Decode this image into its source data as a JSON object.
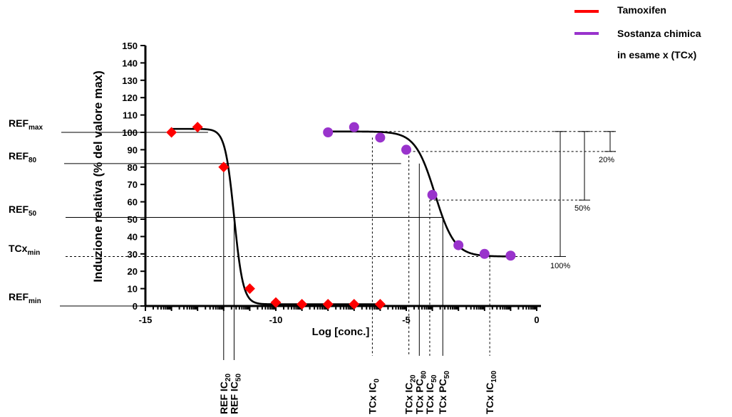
{
  "chart_data": {
    "type": "scatter",
    "title": "",
    "xlabel": "Log [conc.]",
    "ylabel": "Induzione relativa (% del valore max)",
    "xlim": [
      -15,
      0
    ],
    "ylim": [
      0,
      150
    ],
    "x_ticks": [
      -15,
      -10,
      -5,
      0
    ],
    "y_ticks": [
      0,
      10,
      20,
      30,
      40,
      50,
      60,
      70,
      80,
      90,
      100,
      110,
      120,
      130,
      140,
      150
    ],
    "legend_position": "top-right",
    "series": [
      {
        "name": "Tamoxifen",
        "color": "#ff0000",
        "marker": "diamond",
        "points": [
          [
            -14,
            100
          ],
          [
            -13,
            103
          ],
          [
            -12,
            80
          ],
          [
            -11,
            10
          ],
          [
            -10,
            2
          ],
          [
            -9,
            1
          ],
          [
            -8,
            1
          ],
          [
            -7,
            1
          ],
          [
            -6,
            1
          ]
        ],
        "fit": {
          "top": 102,
          "bottom": 1,
          "ic50": -11.6,
          "hill": -2.5
        }
      },
      {
        "name": "Sostanza chimica in esame x (TCx)",
        "legend_line2": "in esame x (TCx)",
        "legend_line1": "Sostanza chimica",
        "color": "#9933cc",
        "marker": "circle",
        "points": [
          [
            -8,
            100
          ],
          [
            -7,
            103
          ],
          [
            -6,
            97
          ],
          [
            -5,
            90
          ],
          [
            -4,
            64
          ],
          [
            -3,
            35
          ],
          [
            -2,
            30
          ],
          [
            -1,
            29
          ]
        ],
        "fit": {
          "top": 100.5,
          "bottom": 28.5,
          "ic50": -3.9,
          "hill": -1.15
        }
      }
    ],
    "reference_levels": [
      {
        "id": "ref-max",
        "main": "REF",
        "sub": "max",
        "y": 100
      },
      {
        "id": "ref-80",
        "main": "REF",
        "sub": "80",
        "y": 82
      },
      {
        "id": "ref-50",
        "main": "REF",
        "sub": "50",
        "y": 51
      },
      {
        "id": "tcx-min",
        "main": "TCx",
        "sub": "min",
        "y": 28.5
      },
      {
        "id": "ref-min",
        "main": "REF",
        "sub": "min",
        "y": 0
      }
    ],
    "concentration_markers": [
      {
        "id": "ref-ic20",
        "main": "REF IC",
        "sub": "20",
        "x": -12
      },
      {
        "id": "ref-ic50",
        "main": "REF IC",
        "sub": "50",
        "x": -11.6
      },
      {
        "id": "tcx-ic0",
        "main": "TCx IC",
        "sub": "0",
        "x": -6.3
      },
      {
        "id": "tcx-ic20",
        "main": "TCx IC",
        "sub": "20",
        "x": -4.9
      },
      {
        "id": "tcx-pc80",
        "main": "TCx PC",
        "sub": "80",
        "x": -4.5
      },
      {
        "id": "tcx-ic50",
        "main": "TCx IC",
        "sub": "50",
        "x": -4.1
      },
      {
        "id": "tcx-pc50",
        "main": "TCx PC",
        "sub": "50",
        "x": -3.6
      },
      {
        "id": "tcx-ic100",
        "main": "TCx IC",
        "sub": "100",
        "x": -1.8
      }
    ],
    "percent_annotations": [
      {
        "id": "pct-20",
        "label": "20%",
        "y": 90
      },
      {
        "id": "pct-50",
        "label": "50%",
        "y": 61
      },
      {
        "id": "pct-100",
        "label": "100%",
        "y": 28.5
      }
    ]
  }
}
